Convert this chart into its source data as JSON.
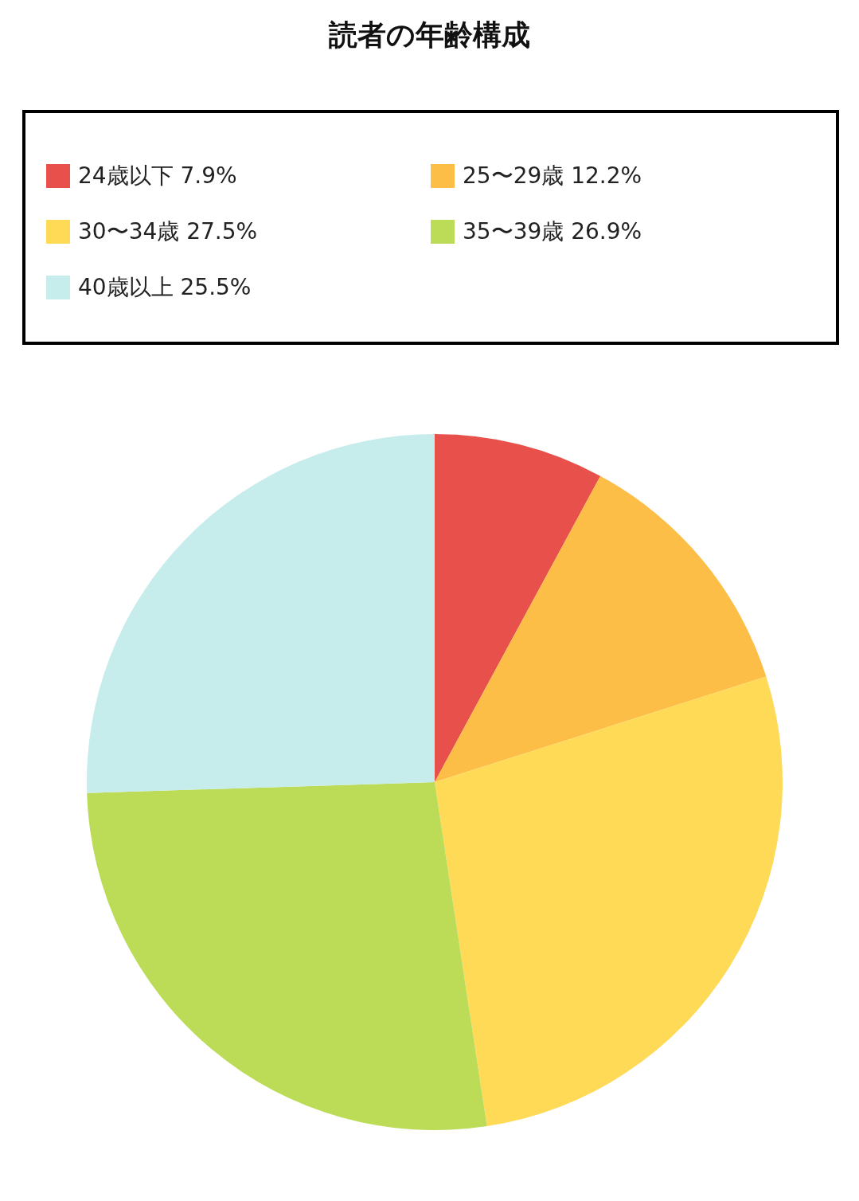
{
  "chart_data": {
    "type": "pie",
    "title": "読者の年齢構成",
    "categories": [
      "24歳以下",
      "25〜29歳",
      "30〜34歳",
      "35〜39歳",
      "40歳以上"
    ],
    "values": [
      7.9,
      12.2,
      27.5,
      26.9,
      25.5
    ],
    "value_labels": [
      "7.9%",
      "12.2%",
      "27.5%",
      "26.9%",
      "25.5%"
    ],
    "colors": [
      "#e8504c",
      "#fdbe48",
      "#feda56",
      "#bcdc58",
      "#c6ecec"
    ],
    "legend": "top"
  }
}
